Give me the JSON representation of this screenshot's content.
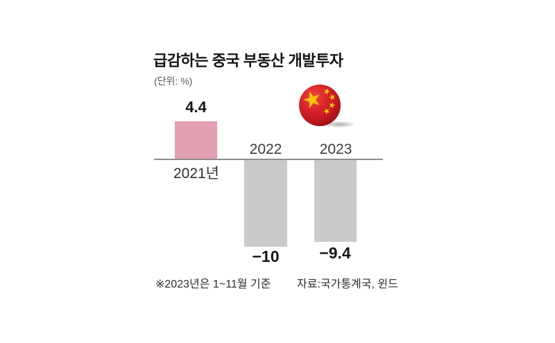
{
  "chart_data": {
    "type": "bar",
    "title": "급감하는 중국 부동산 개발투자",
    "unit": "(단위: %)",
    "categories": [
      "2021년",
      "2022",
      "2023"
    ],
    "values": [
      4.4,
      -10,
      -9.4
    ],
    "value_labels": [
      "4.4",
      "−10",
      "−9.4"
    ],
    "bar_colors": [
      "#e2a1b2",
      "#cacaca",
      "#cacaca"
    ],
    "axis_color": "#8d8d8d",
    "baseline": 0,
    "grid": false,
    "legend": false,
    "footnote": "※2023년은 1~11월 기준",
    "source": "자료:국가통계국, 윈드"
  },
  "flag": {
    "icon": "china-flag-ball",
    "red_main": "#d8262c",
    "red_edge": "#931016",
    "star_gold": "#f6c40a"
  }
}
